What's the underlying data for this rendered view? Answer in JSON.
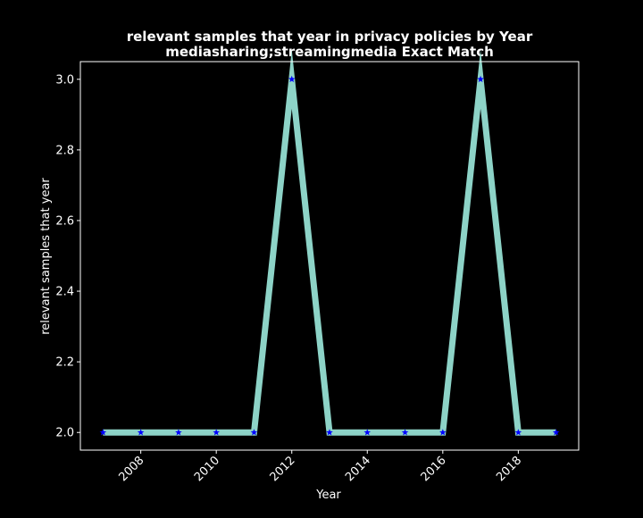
{
  "colors": {
    "background": "#000000",
    "foreground": "#ffffff",
    "line": "#8dd3c7",
    "marker": "#0000ff"
  },
  "chart_data": {
    "type": "line",
    "title_line1": "relevant samples that year in privacy policies by Year",
    "title_line2": "mediasharing;streamingmedia Exact Match",
    "xlabel": "Year",
    "ylabel": "relevant samples that year",
    "x": [
      2007,
      2008,
      2009,
      2010,
      2011,
      2012,
      2013,
      2014,
      2015,
      2016,
      2017,
      2018,
      2019
    ],
    "values": [
      2,
      2,
      2,
      2,
      2,
      3,
      2,
      2,
      2,
      2,
      3,
      2,
      2
    ],
    "xlim": [
      2006.4,
      2019.6
    ],
    "ylim": [
      1.95,
      3.05
    ],
    "x_ticks": [
      2008,
      2010,
      2012,
      2014,
      2016,
      2018
    ],
    "y_ticks": [
      2.0,
      2.2,
      2.4,
      2.6,
      2.8,
      3.0
    ],
    "y_tick_labels": [
      "2.0",
      "2.2",
      "2.4",
      "2.6",
      "2.8",
      "3.0"
    ],
    "grid": false,
    "marker": "star"
  }
}
